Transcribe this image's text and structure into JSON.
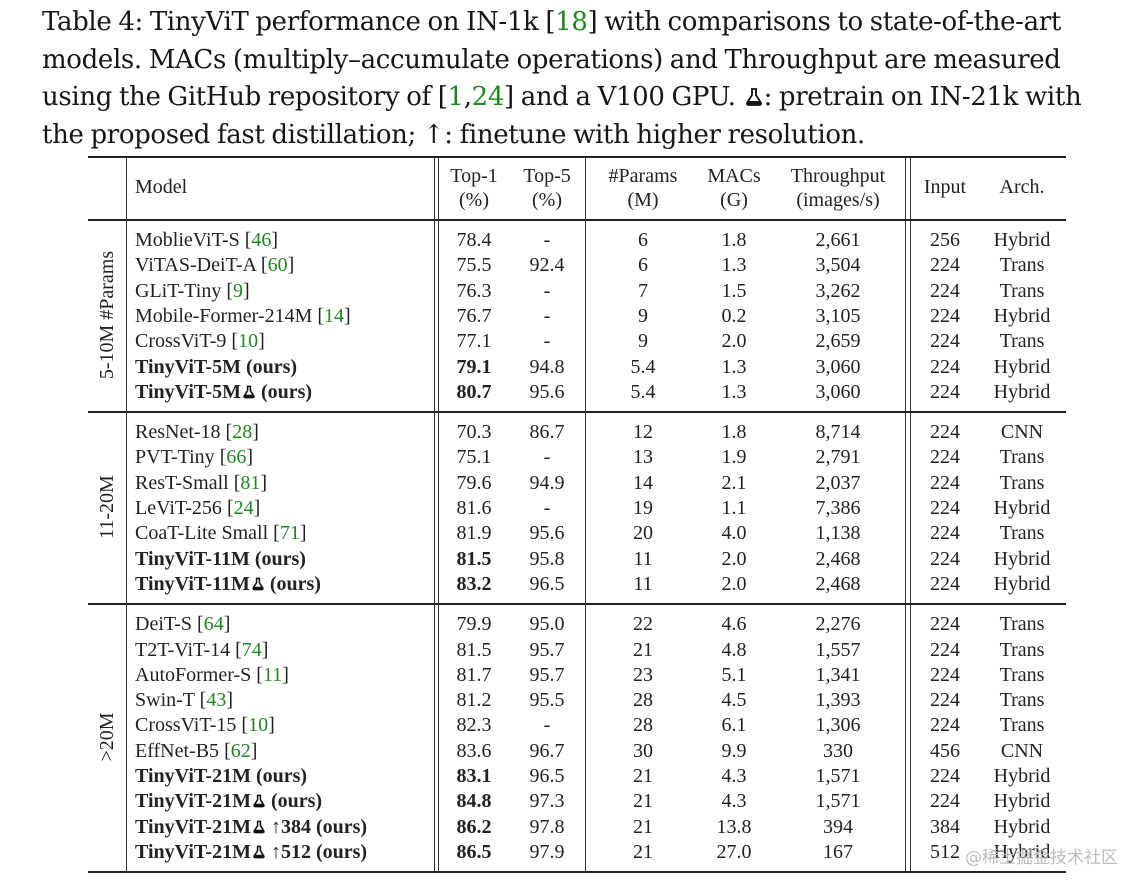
{
  "caption": {
    "part1": "Table 4: TinyViT performance on IN-1k [",
    "ref1": "18",
    "part2": "] with comparisons to state-of-the-art models. MACs (multiply–accumulate operations) and Throughput are measured using the GitHub repository of [",
    "ref2": "1",
    "comma": ",",
    "ref3": "24",
    "part3": "] and a V100 GPU. ",
    "flask_icon": "flask-icon",
    "part4": ": pretrain on IN-21k with the proposed fast distillation; ↑: finetune with higher resolution."
  },
  "headers": {
    "model": "Model",
    "top1": [
      "Top-1",
      "(%)"
    ],
    "top5": [
      "Top-5",
      "(%)"
    ],
    "params": [
      "#Params",
      "(M)"
    ],
    "macs": [
      "MACs",
      "(G)"
    ],
    "throughput": [
      "Throughput",
      "(images/s)"
    ],
    "input": "Input",
    "arch": "Arch."
  },
  "groups": [
    {
      "label": "5-10M #Params",
      "rows": [
        {
          "name": "MoblieViT-S",
          "ref": "46",
          "top1": "78.4",
          "top5": "-",
          "params": "6",
          "macs": "1.8",
          "throughput": "2,661",
          "input": "256",
          "arch": "Hybrid",
          "bold": false
        },
        {
          "name": "ViTAS-DeiT-A",
          "ref": "60",
          "top1": "75.5",
          "top5": "92.4",
          "params": "6",
          "macs": "1.3",
          "throughput": "3,504",
          "input": "224",
          "arch": "Trans",
          "bold": false
        },
        {
          "name": "GLiT-Tiny",
          "ref": "9",
          "top1": "76.3",
          "top5": "-",
          "params": "7",
          "macs": "1.5",
          "throughput": "3,262",
          "input": "224",
          "arch": "Trans",
          "bold": false
        },
        {
          "name": "Mobile-Former-214M",
          "ref": "14",
          "top1": "76.7",
          "top5": "-",
          "params": "9",
          "macs": "0.2",
          "throughput": "3,105",
          "input": "224",
          "arch": "Hybrid",
          "bold": false
        },
        {
          "name": "CrossViT-9",
          "ref": "10",
          "top1": "77.1",
          "top5": "-",
          "params": "9",
          "macs": "2.0",
          "throughput": "2,659",
          "input": "224",
          "arch": "Trans",
          "bold": false
        },
        {
          "name": "TinyViT-5M",
          "suffix": " (ours)",
          "top1": "79.1",
          "top5": "94.8",
          "params": "5.4",
          "macs": "1.3",
          "throughput": "3,060",
          "input": "224",
          "arch": "Hybrid",
          "bold": true
        },
        {
          "name": "TinyViT-5M",
          "flask": true,
          "suffix": " (ours)",
          "top1": "80.7",
          "top5": "95.6",
          "params": "5.4",
          "macs": "1.3",
          "throughput": "3,060",
          "input": "224",
          "arch": "Hybrid",
          "bold": true
        }
      ]
    },
    {
      "label": "11-20M",
      "rows": [
        {
          "name": "ResNet-18",
          "ref": "28",
          "top1": "70.3",
          "top5": "86.7",
          "params": "12",
          "macs": "1.8",
          "throughput": "8,714",
          "input": "224",
          "arch": "CNN",
          "bold": false
        },
        {
          "name": "PVT-Tiny",
          "ref": "66",
          "top1": "75.1",
          "top5": "-",
          "params": "13",
          "macs": "1.9",
          "throughput": "2,791",
          "input": "224",
          "arch": "Trans",
          "bold": false
        },
        {
          "name": "ResT-Small",
          "ref": "81",
          "top1": "79.6",
          "top5": "94.9",
          "params": "14",
          "macs": "2.1",
          "throughput": "2,037",
          "input": "224",
          "arch": "Trans",
          "bold": false
        },
        {
          "name": "LeViT-256",
          "ref": "24",
          "top1": "81.6",
          "top5": "-",
          "params": "19",
          "macs": "1.1",
          "throughput": "7,386",
          "input": "224",
          "arch": "Hybrid",
          "bold": false
        },
        {
          "name": "CoaT-Lite Small",
          "ref": "71",
          "top1": "81.9",
          "top5": "95.6",
          "params": "20",
          "macs": "4.0",
          "throughput": "1,138",
          "input": "224",
          "arch": "Trans",
          "bold": false
        },
        {
          "name": "TinyViT-11M",
          "suffix": " (ours)",
          "top1": "81.5",
          "top5": "95.8",
          "params": "11",
          "macs": "2.0",
          "throughput": "2,468",
          "input": "224",
          "arch": "Hybrid",
          "bold": true
        },
        {
          "name": "TinyViT-11M",
          "flask": true,
          "suffix": " (ours)",
          "top1": "83.2",
          "top5": "96.5",
          "params": "11",
          "macs": "2.0",
          "throughput": "2,468",
          "input": "224",
          "arch": "Hybrid",
          "bold": true
        }
      ]
    },
    {
      "label": ">20M",
      "rows": [
        {
          "name": "DeiT-S",
          "ref": "64",
          "top1": "79.9",
          "top5": "95.0",
          "params": "22",
          "macs": "4.6",
          "throughput": "2,276",
          "input": "224",
          "arch": "Trans",
          "bold": false
        },
        {
          "name": "T2T-ViT-14",
          "ref": "74",
          "top1": "81.5",
          "top5": "95.7",
          "params": "21",
          "macs": "4.8",
          "throughput": "1,557",
          "input": "224",
          "arch": "Trans",
          "bold": false
        },
        {
          "name": "AutoFormer-S",
          "ref": "11",
          "top1": "81.7",
          "top5": "95.7",
          "params": "23",
          "macs": "5.1",
          "throughput": "1,341",
          "input": "224",
          "arch": "Trans",
          "bold": false
        },
        {
          "name": "Swin-T",
          "ref": "43",
          "top1": "81.2",
          "top5": "95.5",
          "params": "28",
          "macs": "4.5",
          "throughput": "1,393",
          "input": "224",
          "arch": "Trans",
          "bold": false
        },
        {
          "name": "CrossViT-15",
          "ref": "10",
          "top1": "82.3",
          "top5": "-",
          "params": "28",
          "macs": "6.1",
          "throughput": "1,306",
          "input": "224",
          "arch": "Trans",
          "bold": false
        },
        {
          "name": "EffNet-B5",
          "ref": "62",
          "top1": "83.6",
          "top5": "96.7",
          "params": "30",
          "macs": "9.9",
          "throughput": "330",
          "input": "456",
          "arch": "CNN",
          "bold": false
        },
        {
          "name": "TinyViT-21M",
          "suffix": " (ours)",
          "top1": "83.1",
          "top5": "96.5",
          "params": "21",
          "macs": "4.3",
          "throughput": "1,571",
          "input": "224",
          "arch": "Hybrid",
          "bold": true
        },
        {
          "name": "TinyViT-21M",
          "flask": true,
          "suffix": " (ours)",
          "top1": "84.8",
          "top5": "97.3",
          "params": "21",
          "macs": "4.3",
          "throughput": "1,571",
          "input": "224",
          "arch": "Hybrid",
          "bold": true
        },
        {
          "name": "TinyViT-21M",
          "flask": true,
          "suffix": " ↑384 (ours)",
          "top1": "86.2",
          "top5": "97.8",
          "params": "21",
          "macs": "13.8",
          "throughput": "394",
          "input": "384",
          "arch": "Hybrid",
          "bold": true
        },
        {
          "name": "TinyViT-21M",
          "flask": true,
          "suffix": " ↑512 (ours)",
          "top1": "86.5",
          "top5": "97.9",
          "params": "21",
          "macs": "27.0",
          "throughput": "167",
          "input": "512",
          "arch": "Hybrid",
          "bold": true
        }
      ]
    }
  ],
  "watermark": "@稀土掘金技术社区"
}
